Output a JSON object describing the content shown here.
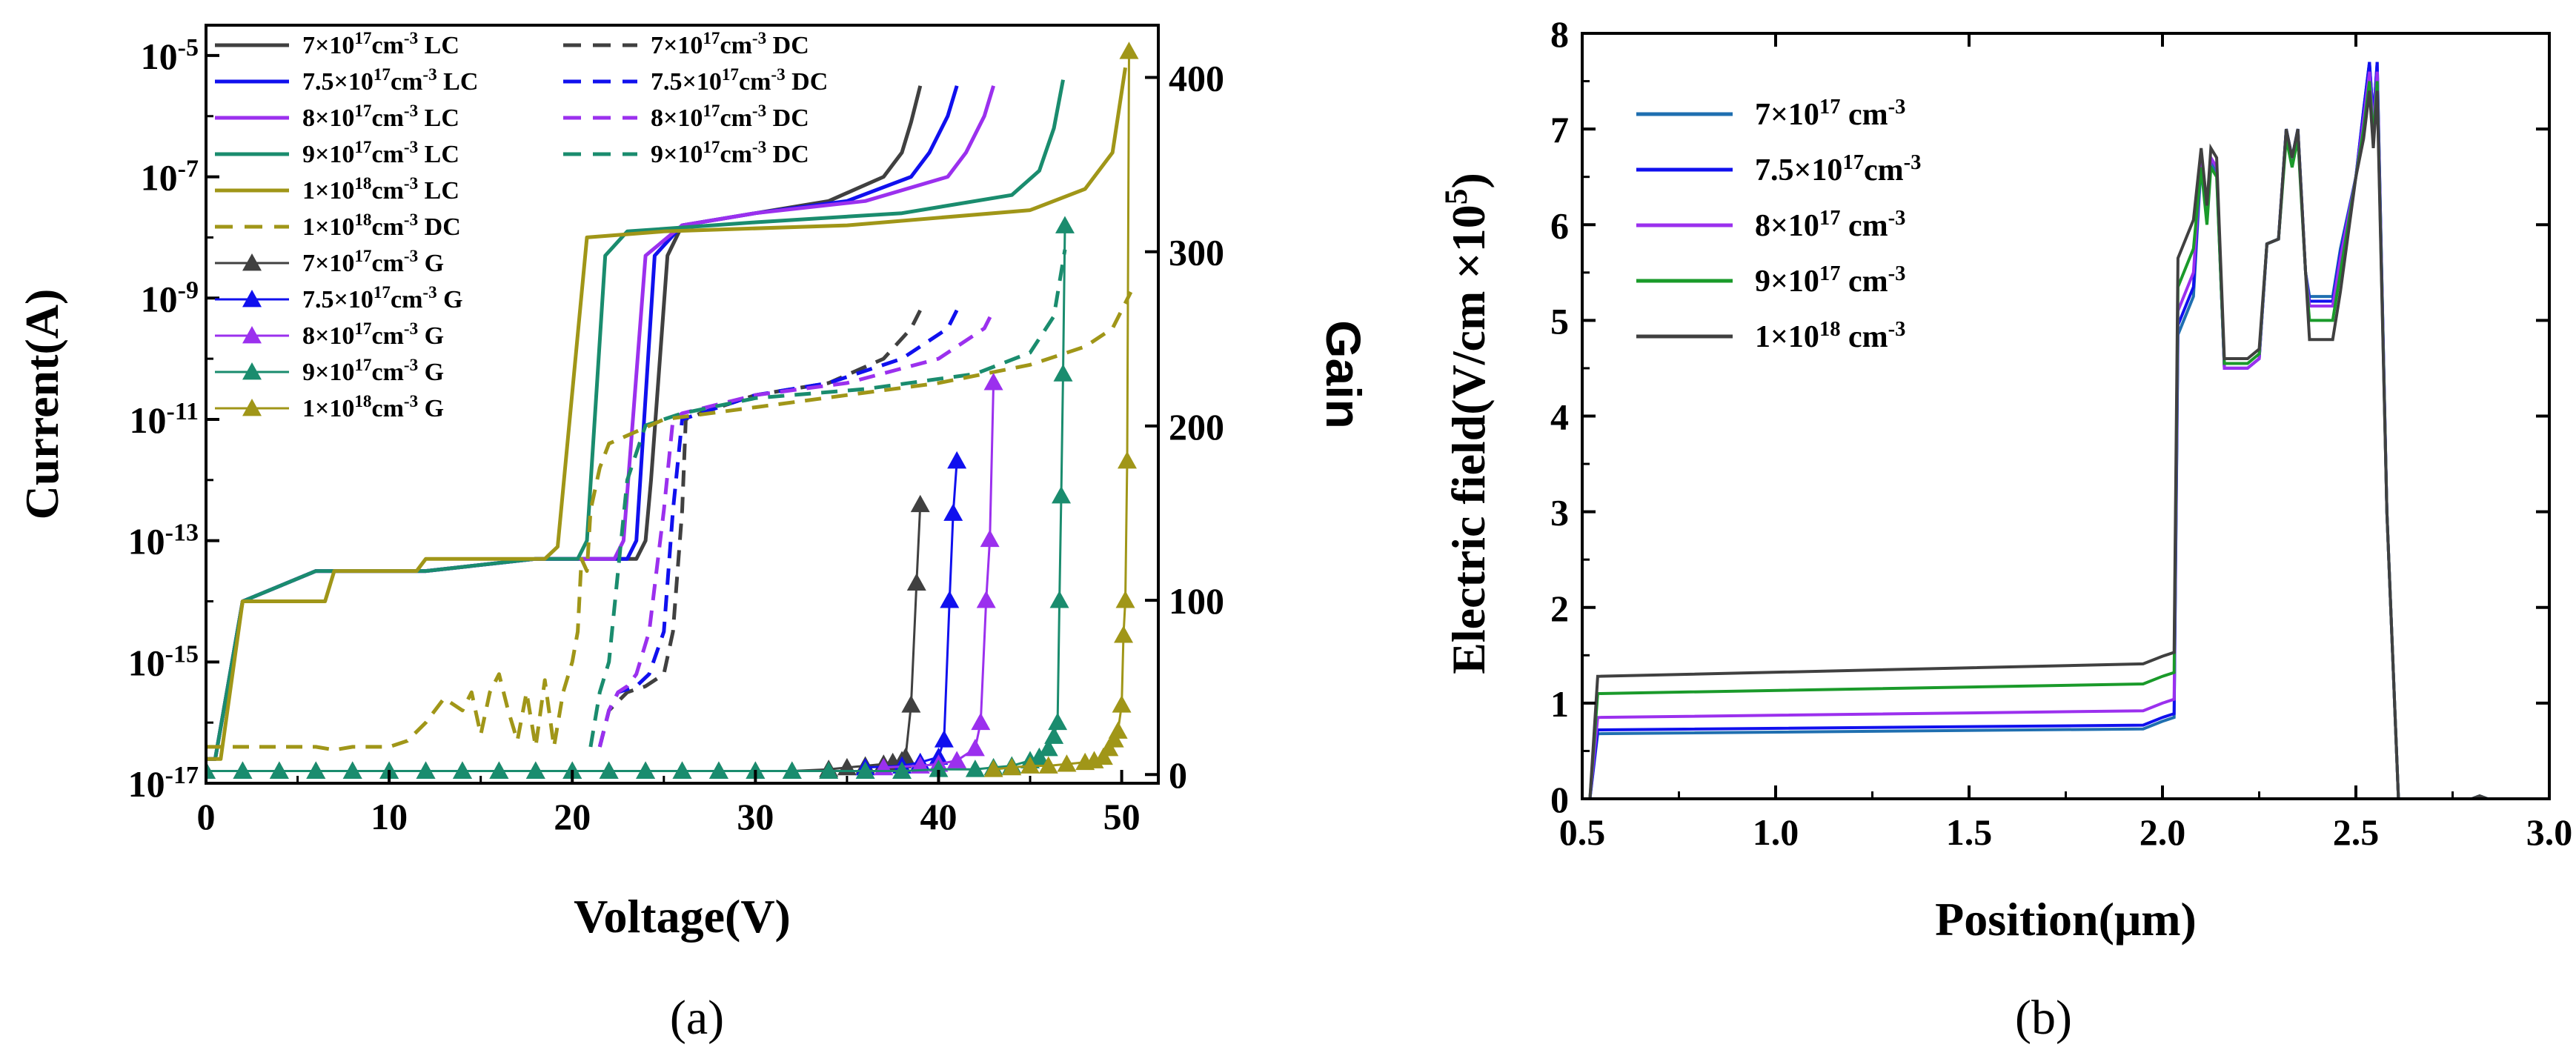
{
  "chart_data": [
    {
      "id": "a",
      "type": "line",
      "panel_label": "(a)",
      "xlabel": "Voltage(V)",
      "ylabel": "Current(A)",
      "y2label": "Gain",
      "xlim": [
        0,
        52
      ],
      "xticks": [
        0,
        10,
        20,
        30,
        40,
        50
      ],
      "ylim_log10": [
        -17,
        -4.5
      ],
      "yticks_left": [
        {
          "exp": -17,
          "label": "10",
          "sup": "-17"
        },
        {
          "exp": -15,
          "label": "10",
          "sup": "-15"
        },
        {
          "exp": -13,
          "label": "10",
          "sup": "-13"
        },
        {
          "exp": -11,
          "label": "10",
          "sup": "-11"
        },
        {
          "exp": -9,
          "label": "10",
          "sup": "-9"
        },
        {
          "exp": -7,
          "label": "10",
          "sup": "-7"
        },
        {
          "exp": -5,
          "label": "10",
          "sup": "-5"
        }
      ],
      "y2lim": [
        -5,
        430
      ],
      "yticks_right": [
        0,
        100,
        200,
        300,
        400
      ],
      "series_lc": [
        {
          "name": "7×10¹⁷cm⁻³ LC",
          "color": "#404040",
          "x": [
            0,
            0.5,
            2,
            6,
            12,
            18,
            20,
            22,
            23.5,
            24,
            24.3,
            25.2,
            26,
            30,
            34,
            37,
            38,
            38.5,
            39
          ],
          "y": [
            -16.6,
            -16.6,
            -14.0,
            -13.5,
            -13.5,
            -13.3,
            -13.3,
            -13.3,
            -13.3,
            -13.0,
            -12.0,
            -8.3,
            -7.8,
            -7.6,
            -7.4,
            -7.0,
            -6.6,
            -6.1,
            -5.5
          ]
        },
        {
          "name": "7.5×10¹⁷cm⁻³ LC",
          "color": "#1010ee",
          "x": [
            0,
            0.5,
            2,
            6,
            12,
            18,
            20,
            22,
            23,
            23.5,
            24.5,
            26,
            30,
            35,
            38.5,
            39.5,
            40.5,
            41
          ],
          "y": [
            -16.6,
            -16.6,
            -14.0,
            -13.5,
            -13.5,
            -13.3,
            -13.3,
            -13.3,
            -13.3,
            -13.0,
            -8.3,
            -7.8,
            -7.6,
            -7.4,
            -7.0,
            -6.6,
            -6.0,
            -5.5
          ]
        },
        {
          "name": "8×10¹⁷cm⁻³ LC",
          "color": "#9b30ee",
          "x": [
            0,
            0.5,
            2,
            6,
            12,
            18,
            20,
            22,
            22.3,
            22.8,
            24,
            26,
            30,
            36,
            40.5,
            41.5,
            42.5,
            43
          ],
          "y": [
            -16.6,
            -16.6,
            -14.0,
            -13.5,
            -13.5,
            -13.3,
            -13.3,
            -13.3,
            -13.3,
            -13.0,
            -8.3,
            -7.8,
            -7.6,
            -7.4,
            -7.0,
            -6.6,
            -6.0,
            -5.5
          ]
        },
        {
          "name": "9×10¹⁷cm⁻³ LC",
          "color": "#1a8c6e",
          "x": [
            0,
            0.5,
            2,
            6,
            12,
            18,
            19.5,
            20.3,
            20.8,
            21.8,
            23,
            30,
            38,
            44,
            45.5,
            46.3,
            46.8
          ],
          "y": [
            -16.6,
            -16.6,
            -14.0,
            -13.5,
            -13.5,
            -13.3,
            -13.3,
            -13.3,
            -13.0,
            -8.3,
            -7.9,
            -7.75,
            -7.6,
            -7.3,
            -6.9,
            -6.2,
            -5.4
          ]
        },
        {
          "name": "1×10¹⁸cm⁻³ LC",
          "color": "#a09618",
          "x": [
            0,
            0.8,
            2,
            2.1,
            6.5,
            7,
            11.5,
            12,
            18,
            18.5,
            19.2,
            20.8,
            25,
            35,
            45,
            48,
            49.5,
            50.2
          ],
          "y": [
            -16.6,
            -16.6,
            -14.0,
            -14.0,
            -14.0,
            -13.5,
            -13.5,
            -13.3,
            -13.3,
            -13.3,
            -13.1,
            -8.0,
            -7.9,
            -7.8,
            -7.55,
            -7.2,
            -6.6,
            -5.2
          ]
        }
      ],
      "series_dc": [
        {
          "name": "7×10¹⁷cm⁻³ DC",
          "color": "#404040",
          "x": [
            21.5,
            22,
            23,
            24,
            25,
            25.5,
            26,
            26.2,
            27,
            30,
            34,
            37,
            38.5,
            39
          ],
          "y": [
            -16.4,
            -15.8,
            -15.5,
            -15.4,
            -15.2,
            -14.5,
            -12.5,
            -11.0,
            -10.9,
            -10.6,
            -10.4,
            -10.0,
            -9.5,
            -9.2
          ]
        },
        {
          "name": "7.5×10¹⁷cm⁻³ DC",
          "color": "#1010ee",
          "x": [
            21.5,
            22,
            22.5,
            23.5,
            24.2,
            25,
            25.5,
            26,
            27,
            30,
            34,
            38,
            40.5,
            41
          ],
          "y": [
            -16.4,
            -15.8,
            -15.5,
            -15.4,
            -15.2,
            -14.5,
            -12.5,
            -11.0,
            -10.9,
            -10.6,
            -10.4,
            -10.0,
            -9.5,
            -9.2
          ]
        },
        {
          "name": "8×10¹⁷cm⁻³ DC",
          "color": "#9b30ee",
          "x": [
            21.5,
            22,
            22.5,
            23,
            23.5,
            24.2,
            25,
            25.5,
            26,
            30,
            35,
            40,
            42.5,
            43
          ],
          "y": [
            -16.4,
            -15.8,
            -15.5,
            -15.4,
            -15.2,
            -14.5,
            -12.5,
            -11.0,
            -10.9,
            -10.6,
            -10.4,
            -10.0,
            -9.5,
            -9.2
          ]
        },
        {
          "name": "9×10¹⁷cm⁻³ DC",
          "color": "#1a8c6e",
          "x": [
            21,
            21.5,
            22,
            22.5,
            23,
            24,
            26,
            30,
            36,
            42,
            45,
            46.3,
            46.9
          ],
          "y": [
            -16.4,
            -15.5,
            -15.0,
            -13.5,
            -12.0,
            -11.1,
            -10.9,
            -10.65,
            -10.5,
            -10.25,
            -9.9,
            -9.3,
            -8.2
          ]
        },
        {
          "name": "1×10¹⁸cm⁻³ DC",
          "color": "#a09618",
          "x": [
            0,
            2,
            4,
            6,
            7,
            8,
            9,
            10,
            11,
            12,
            13,
            14,
            14.5,
            15,
            15.5,
            16,
            16.5,
            17,
            17.5,
            18,
            18.5,
            19,
            19.5,
            20,
            20.3,
            20.5,
            20.8,
            21,
            21.5,
            22,
            25,
            30,
            35,
            40,
            45,
            48,
            49.5,
            50.5
          ],
          "y": [
            -16.4,
            -16.4,
            -16.4,
            -16.4,
            -16.45,
            -16.4,
            -16.4,
            -16.4,
            -16.3,
            -16.0,
            -15.6,
            -15.8,
            -15.5,
            -16.2,
            -15.5,
            -15.2,
            -15.8,
            -16.3,
            -15.5,
            -16.4,
            -15.3,
            -16.4,
            -15.5,
            -15.0,
            -14.5,
            -13.3,
            -13.5,
            -12.5,
            -11.8,
            -11.4,
            -11.0,
            -10.8,
            -10.6,
            -10.4,
            -10.1,
            -9.8,
            -9.5,
            -8.9
          ]
        }
      ],
      "series_gain": [
        {
          "name": "7×10¹⁷cm⁻³ G",
          "color": "#404040",
          "x": [
            0,
            2,
            4,
            6,
            8,
            10,
            12,
            14,
            16,
            18,
            20,
            22,
            24,
            26,
            28,
            30,
            32,
            34,
            35,
            36,
            37,
            37.5,
            38,
            38.2,
            38.5,
            38.8,
            39
          ],
          "y": [
            2,
            2,
            2,
            2,
            2,
            2,
            2,
            2,
            2,
            2,
            2,
            2,
            2,
            2,
            2,
            2,
            2,
            3,
            4,
            5,
            6,
            7,
            8,
            10,
            40,
            110,
            155
          ]
        },
        {
          "name": "7.5×10¹⁷cm⁻³ G",
          "color": "#1010ee",
          "x": [
            36,
            38,
            39,
            40,
            40.3,
            40.6,
            40.8,
            41
          ],
          "y": [
            4,
            5,
            7,
            10,
            20,
            100,
            150,
            180
          ]
        },
        {
          "name": "8×10¹⁷cm⁻³ G",
          "color": "#9b30ee",
          "x": [
            37,
            39,
            40,
            41,
            42,
            42.3,
            42.6,
            42.8,
            43
          ],
          "y": [
            4,
            5,
            6,
            8,
            15,
            30,
            100,
            135,
            225
          ]
        },
        {
          "name": "9×10¹⁷cm⁻³ G",
          "color": "#1a8c6e",
          "x": [
            0,
            2,
            4,
            6,
            8,
            10,
            12,
            14,
            16,
            18,
            20,
            22,
            24,
            26,
            28,
            30,
            32,
            34,
            36,
            38,
            40,
            42,
            43,
            44,
            45,
            45.5,
            46,
            46.3,
            46.5,
            46.6,
            46.7,
            46.8,
            46.9
          ],
          "y": [
            2,
            2,
            2,
            2,
            2,
            2,
            2,
            2,
            2,
            2,
            2,
            2,
            2,
            2,
            2,
            2,
            2,
            2,
            2,
            2,
            3,
            3,
            4,
            5,
            8,
            10,
            15,
            22,
            30,
            100,
            160,
            230,
            315
          ]
        },
        {
          "name": "1×10¹⁸cm⁻³ G",
          "color": "#a09618",
          "x": [
            43,
            44,
            45,
            46,
            47,
            48,
            48.5,
            49,
            49.3,
            49.6,
            49.8,
            50,
            50.1,
            50.2,
            50.3,
            50.4
          ],
          "y": [
            3,
            4,
            5,
            5,
            6,
            7,
            8,
            10,
            15,
            20,
            25,
            40,
            80,
            100,
            180,
            415
          ]
        }
      ],
      "legend": [
        {
          "text": "7×10",
          "sup": "17",
          "unit": "cm",
          "usup": "-3",
          "tag": "LC",
          "style": "solid",
          "color": "#404040"
        },
        {
          "text": "7×10",
          "sup": "17",
          "unit": "cm",
          "usup": "-3",
          "tag": "DC",
          "style": "dash",
          "color": "#404040"
        },
        {
          "text": "7.5×10",
          "sup": "17",
          "unit": "cm",
          "usup": "-3",
          "tag": "LC",
          "style": "solid",
          "color": "#1010ee"
        },
        {
          "text": "7.5×10",
          "sup": "17",
          "unit": "cm",
          "usup": "-3",
          "tag": "DC",
          "style": "dash",
          "color": "#1010ee"
        },
        {
          "text": "8×10",
          "sup": "17",
          "unit": "cm",
          "usup": "-3",
          "tag": "LC",
          "style": "solid",
          "color": "#9b30ee"
        },
        {
          "text": "8×10",
          "sup": "17",
          "unit": "cm",
          "usup": "-3",
          "tag": "DC",
          "style": "dash",
          "color": "#9b30ee"
        },
        {
          "text": "9×10",
          "sup": "17",
          "unit": "cm",
          "usup": "-3",
          "tag": "LC",
          "style": "solid",
          "color": "#1a8c6e"
        },
        {
          "text": "9×10",
          "sup": "17",
          "unit": "cm",
          "usup": "-3",
          "tag": "DC",
          "style": "dash",
          "color": "#1a8c6e"
        },
        {
          "text": "1×10",
          "sup": "18",
          "unit": "cm",
          "usup": "-3",
          "tag": "LC",
          "style": "solid",
          "color": "#a09618"
        },
        {
          "text": "1×10",
          "sup": "18",
          "unit": "cm",
          "usup": "-3",
          "tag": "DC",
          "style": "dash",
          "color": "#a09618"
        },
        {
          "text": "7×10",
          "sup": "17",
          "unit": "cm",
          "usup": "-3",
          "tag": "G",
          "style": "marker",
          "color": "#404040"
        },
        {
          "text": "7.5×10",
          "sup": "17",
          "unit": "cm",
          "usup": "-3",
          "tag": "G",
          "style": "marker",
          "color": "#1010ee"
        },
        {
          "text": "8×10",
          "sup": "17",
          "unit": "cm",
          "usup": "-3",
          "tag": "G",
          "style": "marker",
          "color": "#9b30ee"
        },
        {
          "text": "9×10",
          "sup": "17",
          "unit": "cm",
          "usup": "-3",
          "tag": "G",
          "style": "marker",
          "color": "#1a8c6e"
        },
        {
          "text": "1×10",
          "sup": "18",
          "unit": "cm",
          "usup": "-3",
          "tag": "G",
          "style": "marker",
          "color": "#a09618"
        }
      ]
    },
    {
      "id": "b",
      "type": "line",
      "panel_label": "(b)",
      "xlabel": "Position(μm)",
      "ylabel": "Electric field(V/cm ×10",
      "ylabel_sup": "5",
      "ylabel_end": ")",
      "xlim": [
        0.5,
        3.0
      ],
      "xticks": [
        {
          "v": 0.5,
          "label": "0.5"
        },
        {
          "v": 1.0,
          "label": "1.0"
        },
        {
          "v": 1.5,
          "label": "1.5"
        },
        {
          "v": 2.0,
          "label": "2.0"
        },
        {
          "v": 2.5,
          "label": "2.5"
        },
        {
          "v": 3.0,
          "label": "3.0"
        }
      ],
      "ylim": [
        0,
        8
      ],
      "yticks": [
        0,
        1,
        2,
        3,
        4,
        5,
        6,
        7,
        8
      ],
      "series": [
        {
          "name": "7×10¹⁷ cm⁻³",
          "color": "#1f6fb0",
          "base": 0.68,
          "slope": 0.05,
          "p1": 4.85,
          "v1": 4.5,
          "p3": 5.25,
          "peakA": 6.65,
          "peakB": 7.0,
          "peakC": 7.7
        },
        {
          "name": "7.5×10¹⁷cm⁻³",
          "color": "#1010ee",
          "base": 0.72,
          "slope": 0.05,
          "p1": 4.95,
          "v1": 4.5,
          "p3": 5.2,
          "peakA": 6.7,
          "peakB": 7.0,
          "peakC": 7.7
        },
        {
          "name": "8×10¹⁷ cm⁻³",
          "color": "#9b30ee",
          "base": 0.85,
          "slope": 0.07,
          "p1": 5.1,
          "v1": 4.5,
          "p3": 5.15,
          "peakA": 6.7,
          "peakB": 6.95,
          "peakC": 7.6
        },
        {
          "name": "9×10¹⁷ cm⁻³",
          "color": "#1a9a2a",
          "base": 1.1,
          "slope": 0.1,
          "p1": 5.35,
          "v1": 4.55,
          "p3": 5.0,
          "peakA": 6.6,
          "peakB": 6.9,
          "peakC": 7.5
        },
        {
          "name": "1×10¹⁸ cm⁻³",
          "color": "#404040",
          "base": 1.28,
          "slope": 0.13,
          "p1": 5.65,
          "v1": 4.6,
          "p3": 4.8,
          "peakA": 6.8,
          "peakB": 7.0,
          "peakC": 7.4
        }
      ],
      "legend": [
        {
          "text": "7×10",
          "sup": "17",
          "unit": "  cm",
          "usup": "-3",
          "color": "#1f6fb0"
        },
        {
          "text": "7.5×10",
          "sup": "17",
          "unit": "cm",
          "usup": "-3",
          "color": "#1010ee"
        },
        {
          "text": "8×10",
          "sup": "17",
          "unit": "  cm",
          "usup": "-3",
          "color": "#9b30ee"
        },
        {
          "text": "9×10",
          "sup": "17",
          "unit": "  cm",
          "usup": "-3",
          "color": "#1a9a2a"
        },
        {
          "text": "1×10",
          "sup": "18",
          "unit": "  cm",
          "usup": "-3",
          "color": "#404040"
        }
      ]
    }
  ]
}
